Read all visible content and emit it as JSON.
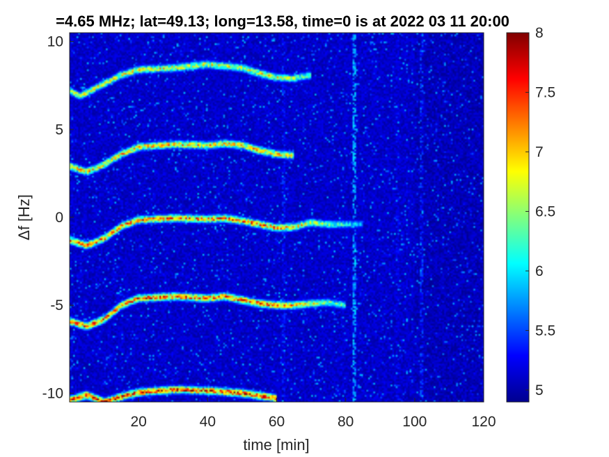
{
  "chart_data": {
    "type": "heatmap",
    "title": "=4.65 MHz;  lat=49.13; long=13.58, time=0 is at 2022 03 11 20:00",
    "xlabel": "time [min]",
    "ylabel": "Δf [Hz]",
    "xlim": [
      0,
      120
    ],
    "ylim": [
      -10.5,
      10.5
    ],
    "xticks": [
      20,
      40,
      60,
      80,
      100,
      120
    ],
    "xtick_labels": [
      "20",
      "40",
      "60",
      "80",
      "100",
      "120"
    ],
    "yticks": [
      10,
      5,
      0,
      -5,
      -10
    ],
    "ytick_labels": [
      "10",
      "5",
      "0",
      "-5",
      "-10"
    ],
    "colorbar": {
      "colormap": "jet",
      "range": [
        4.9,
        8
      ],
      "ticks": [
        8,
        7.5,
        7,
        6.5,
        6,
        5.5,
        5
      ],
      "tick_labels": [
        "8",
        "7.5",
        "7",
        "6.5",
        "6",
        "5.5",
        "5"
      ]
    },
    "background_level": 5.0,
    "traces": [
      {
        "offset": 10,
        "points": [
          [
            0,
            -10.4
          ],
          [
            5,
            -10.1
          ],
          [
            10,
            -10.5
          ],
          [
            15,
            -10.2
          ],
          [
            20,
            -9.95
          ],
          [
            30,
            -9.8
          ],
          [
            40,
            -9.85
          ],
          [
            50,
            -10.0
          ],
          [
            60,
            -10.3
          ]
        ],
        "peak": 7.8
      },
      {
        "offset": 5,
        "points": [
          [
            0,
            -5.9
          ],
          [
            5,
            -6.2
          ],
          [
            10,
            -5.8
          ],
          [
            15,
            -5.0
          ],
          [
            20,
            -4.6
          ],
          [
            30,
            -4.5
          ],
          [
            40,
            -4.6
          ],
          [
            45,
            -4.5
          ],
          [
            50,
            -4.7
          ],
          [
            55,
            -4.9
          ],
          [
            60,
            -5.0
          ],
          [
            65,
            -5.0
          ],
          [
            70,
            -4.9
          ],
          [
            75,
            -4.85
          ],
          [
            80,
            -5.0
          ]
        ],
        "peak": 7.6
      },
      {
        "offset": 0,
        "points": [
          [
            0,
            -1.3
          ],
          [
            5,
            -1.6
          ],
          [
            10,
            -1.2
          ],
          [
            15,
            -0.5
          ],
          [
            20,
            -0.15
          ],
          [
            30,
            -0.05
          ],
          [
            40,
            -0.1
          ],
          [
            45,
            -0.05
          ],
          [
            50,
            -0.2
          ],
          [
            55,
            -0.4
          ],
          [
            60,
            -0.6
          ],
          [
            65,
            -0.55
          ],
          [
            70,
            -0.3
          ],
          [
            75,
            -0.4
          ],
          [
            85,
            -0.4
          ]
        ],
        "peak": 7.5
      },
      {
        "offset": -5,
        "points": [
          [
            0,
            2.9
          ],
          [
            5,
            2.6
          ],
          [
            10,
            3.0
          ],
          [
            15,
            3.6
          ],
          [
            20,
            4.0
          ],
          [
            30,
            4.15
          ],
          [
            40,
            4.1
          ],
          [
            45,
            4.2
          ],
          [
            50,
            4.1
          ],
          [
            55,
            3.8
          ],
          [
            60,
            3.6
          ],
          [
            65,
            3.5
          ]
        ],
        "peak": 7.2
      },
      {
        "offset": -10,
        "points": [
          [
            0,
            7.2
          ],
          [
            3,
            6.9
          ],
          [
            10,
            7.6
          ],
          [
            15,
            8.1
          ],
          [
            20,
            8.4
          ],
          [
            30,
            8.5
          ],
          [
            40,
            8.7
          ],
          [
            50,
            8.5
          ],
          [
            55,
            8.2
          ],
          [
            60,
            7.95
          ],
          [
            65,
            7.9
          ],
          [
            70,
            8.1
          ]
        ],
        "peak": 7.0
      }
    ],
    "vertical_streaks": [
      {
        "x": 82.5,
        "level": 6.0
      },
      {
        "x": 102,
        "level": 5.6
      },
      {
        "x": 62,
        "level": 5.5
      },
      {
        "x": 95,
        "level": 5.4
      }
    ]
  }
}
